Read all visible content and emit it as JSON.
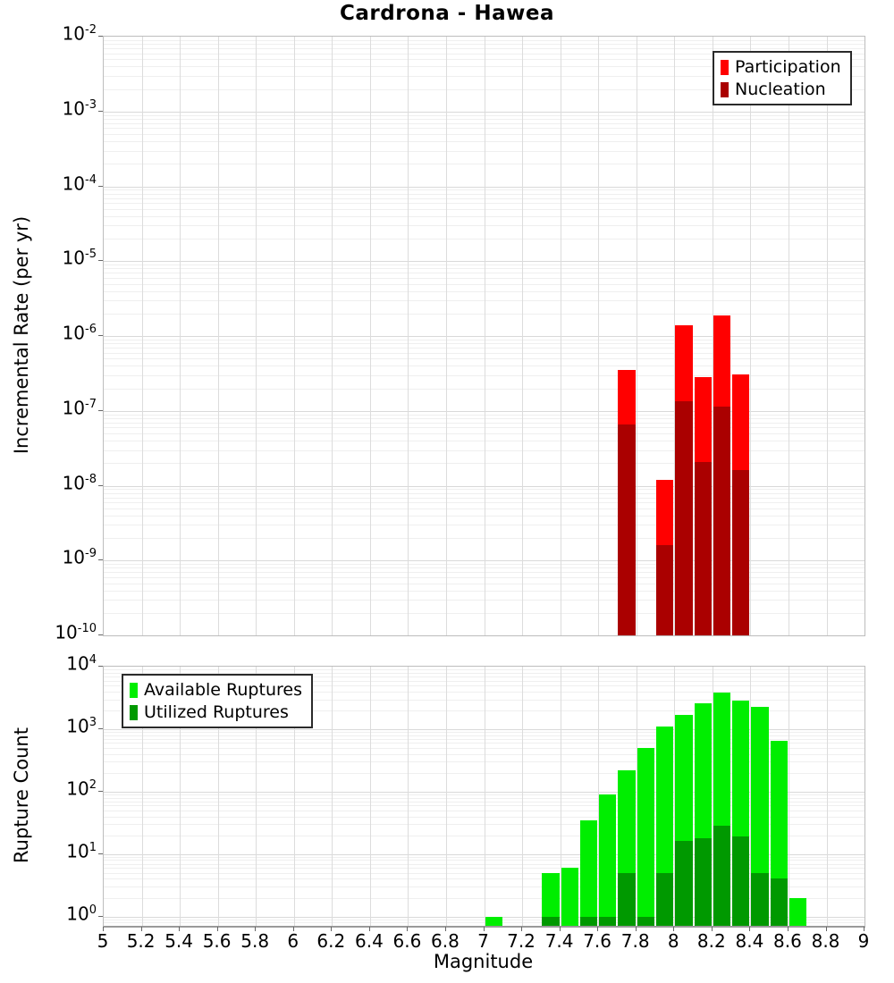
{
  "title": "Cardrona - Hawea",
  "x_axis": {
    "label": "Magnitude",
    "min": 5,
    "max": 9,
    "tick_values": [
      5,
      5.2,
      5.4,
      5.6,
      5.8,
      6,
      6.2,
      6.4,
      6.6,
      6.8,
      7,
      7.2,
      7.4,
      7.6,
      7.8,
      8,
      8.2,
      8.4,
      8.6,
      8.8,
      9
    ],
    "tick_labels": [
      "5",
      "5.2",
      "5.4",
      "5.6",
      "5.8",
      "6",
      "6.2",
      "6.4",
      "6.6",
      "6.8",
      "7",
      "7.2",
      "7.4",
      "7.6",
      "7.8",
      "8",
      "8.2",
      "8.4",
      "8.6",
      "8.8",
      "9"
    ]
  },
  "colors": {
    "participation": "#ff0000",
    "nucleation": "#aa0000",
    "available": "#00ee00",
    "utilized": "#009900",
    "grid_major": "#d9d9d9",
    "grid_minor": "#efefef",
    "axis_border": "#bdbdbd",
    "text": "#000000"
  },
  "chart_data": [
    {
      "type": "bar",
      "title": "Cardrona - Hawea",
      "xlabel": "Magnitude",
      "ylabel": "Incremental Rate (per yr)",
      "yscale": "log",
      "ylim": [
        1e-10,
        0.01
      ],
      "xlim": [
        5,
        9
      ],
      "grid": true,
      "bar_style": "overlay",
      "bin_width": 0.1,
      "bins": [
        7.75,
        7.95,
        8.05,
        8.15,
        8.25,
        8.35
      ],
      "series": [
        {
          "name": "Participation",
          "color": "#ff0000",
          "values": [
            3.5e-07,
            1.2e-08,
            1.4e-06,
            2.8e-07,
            1.9e-06,
            3.1e-07
          ]
        },
        {
          "name": "Nucleation",
          "color": "#aa0000",
          "values": [
            6.5e-08,
            1.6e-09,
            1.35e-07,
            2.1e-08,
            1.15e-07,
            1.6e-08
          ]
        }
      ],
      "y_tick_exponents": [
        -2,
        -3,
        -4,
        -5,
        -6,
        -7,
        -8,
        -9,
        -10
      ],
      "legend_position": "top-right"
    },
    {
      "type": "bar",
      "title": "",
      "xlabel": "Magnitude",
      "ylabel": "Rupture Count",
      "yscale": "log",
      "ylim": [
        1,
        10000
      ],
      "xlim": [
        5,
        9
      ],
      "grid": true,
      "bar_style": "overlay",
      "bin_width": 0.1,
      "bins": [
        7.05,
        7.35,
        7.45,
        7.55,
        7.65,
        7.75,
        7.85,
        7.95,
        8.05,
        8.15,
        8.25,
        8.35,
        8.45,
        8.55,
        8.65
      ],
      "series": [
        {
          "name": "Available Ruptures",
          "color": "#00ee00",
          "values": [
            1,
            5,
            6,
            35,
            90,
            220,
            500,
            1100,
            1700,
            2600,
            3800,
            2900,
            2300,
            650,
            2
          ]
        },
        {
          "name": "Utilized Ruptures",
          "color": "#009900",
          "values": [
            0,
            1,
            0,
            1,
            1,
            5,
            1,
            5,
            16,
            18,
            28,
            19,
            5,
            4,
            0
          ]
        }
      ],
      "y_tick_exponents": [
        4,
        3,
        2,
        1,
        0
      ],
      "legend_position": "top-left"
    }
  ]
}
